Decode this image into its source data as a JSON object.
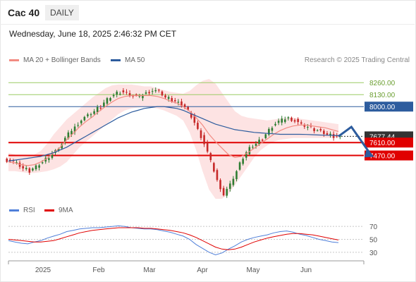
{
  "header": {
    "symbol": "Cac 40",
    "period": "DAILY"
  },
  "timestamp": "Wednesday, June 18, 2025 2:46:32 PM CET",
  "legend": {
    "price": [
      {
        "label": "MA 20 + Bollinger Bands",
        "color": "#f28b82"
      },
      {
        "label": "MA 50",
        "color": "#2d5c9e"
      }
    ],
    "oscillator": [
      {
        "label": "RSI",
        "color": "#4f7fd9"
      },
      {
        "label": "9MA",
        "color": "#e00000"
      }
    ]
  },
  "credit": "Research © 2025 Trading Central",
  "colors": {
    "up": "#2e7d32",
    "down": "#c62828",
    "band_fill": "#fde3e3",
    "support": "#e00000",
    "resistance_green": "#9ccc65",
    "resistance_blue": "#2d5c9e",
    "last_price": "#333333"
  },
  "chart_data": [
    {
      "type": "candlestick",
      "title": "Cac 40",
      "interval": "daily",
      "x_labels": [
        "2025",
        "Feb",
        "Mar",
        "Apr",
        "May",
        "Jun"
      ],
      "ylim": [
        7000,
        8300
      ],
      "levels": [
        {
          "label": "8260.00",
          "value": 8260,
          "style": "resistance",
          "color": "#9ccc65"
        },
        {
          "label": "8130.00",
          "value": 8130,
          "style": "resistance",
          "color": "#9ccc65"
        },
        {
          "label": "8000.00",
          "value": 8000,
          "style": "resistance",
          "color": "#2d5c9e"
        },
        {
          "label": "7610.00",
          "value": 7610,
          "style": "support",
          "color": "#e00000"
        },
        {
          "label": "7470.00",
          "value": 7470,
          "style": "support",
          "color": "#e00000"
        }
      ],
      "last_price": {
        "label": "7677.44",
        "value": 7677.44
      },
      "close_path": [
        7420,
        7380,
        7330,
        7300,
        7350,
        7400,
        7460,
        7520,
        7600,
        7700,
        7780,
        7860,
        7900,
        7950,
        8000,
        8080,
        8130,
        8160,
        8150,
        8120,
        8100,
        8150,
        8180,
        8160,
        8100,
        8070,
        8040,
        8000,
        7900,
        7750,
        7600,
        7400,
        7200,
        7050,
        7150,
        7300,
        7450,
        7550,
        7600,
        7650,
        7750,
        7820,
        7850,
        7880,
        7850,
        7800,
        7780,
        7750,
        7730,
        7700,
        7680,
        7677.44
      ],
      "ma20_path": [
        7400,
        7390,
        7370,
        7360,
        7370,
        7400,
        7440,
        7500,
        7560,
        7640,
        7710,
        7780,
        7840,
        7890,
        7950,
        8000,
        8050,
        8090,
        8110,
        8120,
        8120,
        8120,
        8120,
        8110,
        8090,
        8060,
        8040,
        8000,
        7950,
        7880,
        7800,
        7700,
        7620,
        7550,
        7480,
        7450,
        7460,
        7500,
        7550,
        7600,
        7650,
        7700,
        7740,
        7770,
        7790,
        7800,
        7800,
        7790,
        7780,
        7770,
        7750,
        7730
      ],
      "ma50_path": [
        7410,
        7420,
        7430,
        7440,
        7450,
        7460,
        7480,
        7500,
        7530,
        7560,
        7600,
        7640,
        7680,
        7720,
        7760,
        7800,
        7840,
        7880,
        7910,
        7940,
        7960,
        7980,
        7990,
        8000,
        8000,
        7990,
        7980,
        7960,
        7930,
        7900,
        7870,
        7840,
        7810,
        7790,
        7770,
        7750,
        7740,
        7730,
        7720,
        7715,
        7710,
        7705,
        7700,
        7700,
        7700,
        7700,
        7698,
        7695,
        7692,
        7690,
        7688,
        7685
      ],
      "band_upper_path": [
        7500,
        7480,
        7460,
        7460,
        7480,
        7520,
        7600,
        7700,
        7780,
        7860,
        7920,
        7980,
        8040,
        8100,
        8150,
        8200,
        8230,
        8240,
        8240,
        8240,
        8230,
        8220,
        8220,
        8200,
        8180,
        8160,
        8150,
        8140,
        8170,
        8230,
        8280,
        8300,
        8250,
        8150,
        8050,
        7950,
        7900,
        7880,
        7870,
        7860,
        7850,
        7860,
        7870,
        7880,
        7880,
        7870,
        7860,
        7850,
        7840,
        7830,
        7820,
        7810
      ],
      "band_lower_path": [
        7300,
        7300,
        7290,
        7280,
        7280,
        7290,
        7300,
        7320,
        7350,
        7400,
        7480,
        7560,
        7620,
        7680,
        7740,
        7800,
        7860,
        7920,
        7960,
        7980,
        7990,
        8000,
        7990,
        7980,
        7960,
        7930,
        7900,
        7850,
        7720,
        7530,
        7300,
        7100,
        7000,
        7000,
        7050,
        7150,
        7250,
        7350,
        7450,
        7530,
        7580,
        7620,
        7640,
        7650,
        7660,
        7660,
        7660,
        7660,
        7660,
        7660,
        7660,
        7660
      ],
      "projection": [
        {
          "label": "start",
          "x_index": 51,
          "value": 7677.44
        },
        {
          "label": "high",
          "x_index": 53,
          "value": 7780
        },
        {
          "label": "low",
          "x_index": 56,
          "value": 7480
        }
      ]
    },
    {
      "type": "line",
      "title": "RSI",
      "x_labels": [
        "2025",
        "Feb",
        "Mar",
        "Apr",
        "May",
        "Jun"
      ],
      "ylim": [
        20,
        80
      ],
      "y_ticks": [
        70,
        50,
        30
      ],
      "series": [
        {
          "name": "RSI",
          "color": "#4f7fd9",
          "values": [
            48,
            46,
            44,
            43,
            46,
            48,
            52,
            55,
            58,
            62,
            64,
            66,
            67,
            68,
            68,
            69,
            70,
            71,
            70,
            68,
            67,
            66,
            66,
            65,
            63,
            61,
            58,
            55,
            50,
            42,
            36,
            30,
            26,
            29,
            35,
            40,
            46,
            50,
            53,
            55,
            57,
            60,
            62,
            63,
            61,
            58,
            56,
            53,
            50,
            48,
            46,
            45
          ]
        },
        {
          "name": "9MA",
          "color": "#e00000",
          "values": [
            50,
            49,
            48,
            47,
            46,
            46,
            47,
            48,
            51,
            54,
            57,
            60,
            62,
            64,
            65,
            66,
            67,
            68,
            68,
            68,
            68,
            67,
            67,
            66,
            65,
            64,
            62,
            60,
            57,
            53,
            48,
            43,
            38,
            35,
            34,
            35,
            38,
            42,
            46,
            49,
            52,
            54,
            56,
            58,
            59,
            59,
            58,
            57,
            55,
            53,
            51,
            49
          ]
        }
      ]
    }
  ]
}
